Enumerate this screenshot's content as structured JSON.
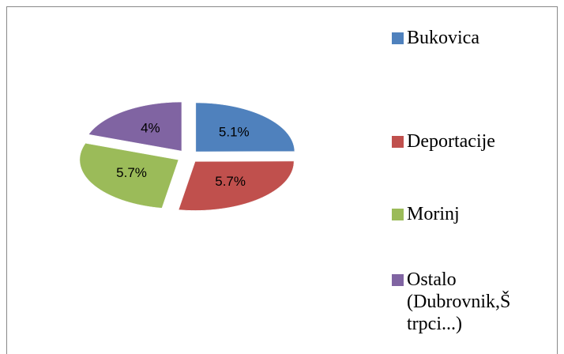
{
  "chart_data": {
    "type": "pie",
    "categories": [
      "Bukovica",
      "Deportacije",
      "Morinj",
      "Ostalo (Dubrovnik,Š trpci...)"
    ],
    "values": [
      5.1,
      5.7,
      5.7,
      4
    ],
    "value_labels": [
      "5.1%",
      "5.7%",
      "5.7%",
      "4%"
    ],
    "colors": [
      "#4f81bd",
      "#c0504d",
      "#9bbb59",
      "#8064a2"
    ],
    "legend": "right"
  }
}
